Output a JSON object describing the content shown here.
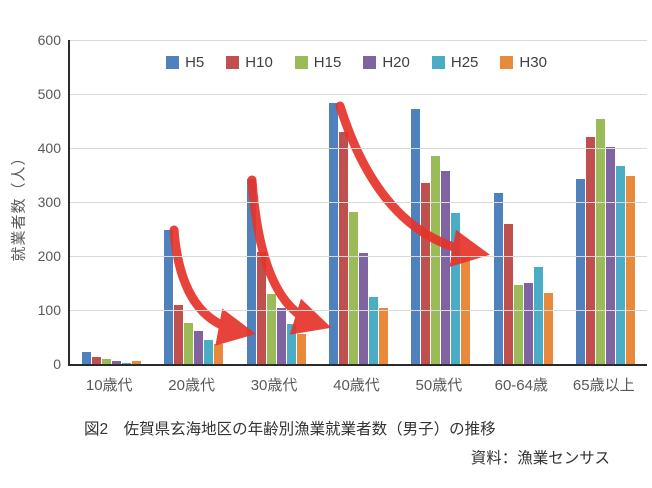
{
  "figure": {
    "caption": "図2　佐賀県玄海地区の年齢別漁業就業者数（男子）の推移",
    "source": "資料：漁業センサス"
  },
  "chart_data": {
    "type": "bar",
    "title": "",
    "xlabel": "",
    "ylabel": "就業者数（人）",
    "ylim": [
      0,
      600
    ],
    "yticks": [
      0,
      100,
      200,
      300,
      400,
      500,
      600
    ],
    "grid": true,
    "legend_position": "top",
    "categories": [
      "10歳代",
      "20歳代",
      "30歳代",
      "40歳代",
      "50歳代",
      "60-64歳",
      "65歳以上"
    ],
    "series": [
      {
        "name": "H5",
        "color": "#4F81BD",
        "values": [
          22,
          248,
          343,
          483,
          472,
          317,
          342
        ]
      },
      {
        "name": "H10",
        "color": "#C0504D",
        "values": [
          13,
          110,
          208,
          430,
          335,
          259,
          420
        ]
      },
      {
        "name": "H15",
        "color": "#9BBB59",
        "values": [
          10,
          76,
          129,
          281,
          385,
          146,
          453
        ]
      },
      {
        "name": "H20",
        "color": "#8064A2",
        "values": [
          5,
          62,
          103,
          205,
          357,
          150,
          402
        ]
      },
      {
        "name": "H25",
        "color": "#4BACC6",
        "values": [
          2,
          45,
          75,
          124,
          280,
          180,
          366
        ]
      },
      {
        "name": "H30",
        "color": "#E8893C",
        "values": [
          5,
          37,
          56,
          104,
          199,
          131,
          349
        ]
      }
    ],
    "annotations": {
      "arrow_color": "#E5342B",
      "arrows": [
        {
          "start": [
            104,
            190
          ],
          "ctrl": [
            111,
            280
          ],
          "end": [
            170,
            291
          ]
        },
        {
          "start": [
            182,
            140
          ],
          "ctrl": [
            191,
            266
          ],
          "end": [
            246,
            283
          ]
        },
        {
          "start": [
            270,
            66
          ],
          "ctrl": [
            311,
            196
          ],
          "end": [
            404,
            212
          ]
        }
      ]
    }
  }
}
